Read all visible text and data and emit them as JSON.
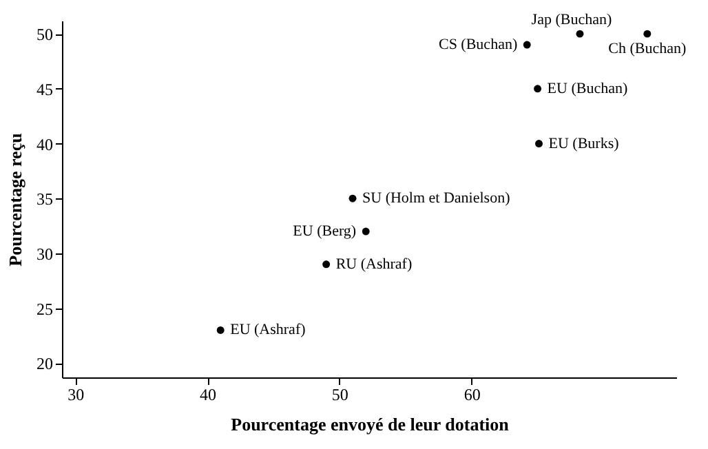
{
  "chart_data": {
    "type": "scatter",
    "xlabel": "Pourcentage envoyé de leur dotation",
    "ylabel": "Pourcentage reçu",
    "x": [
      41,
      49,
      52,
      51,
      65.1,
      65,
      64.2,
      68.2,
      73.3
    ],
    "series": [
      {
        "color": "#000000",
        "values": [
          23,
          29,
          32,
          35,
          40,
          45,
          49,
          50,
          50
        ]
      }
    ],
    "xlim": [
      29,
      75.5
    ],
    "xticks": [
      30,
      40,
      50,
      60
    ],
    "ylim": [
      18.7,
      51.2
    ],
    "yticks": [
      20,
      25,
      30,
      35,
      40,
      45,
      50
    ],
    "grid": false,
    "marker": "circle",
    "annotations": [
      {
        "text": "EU (Ashraf)",
        "x": 41,
        "y": 23
      },
      {
        "text": "RU (Ashraf)",
        "x": 49,
        "y": 29
      },
      {
        "text": "EU (Berg)",
        "x": 52,
        "y": 32
      },
      {
        "text": "SU (Holm et Danielson)",
        "x": 51,
        "y": 35
      },
      {
        "text": "EU (Burks)",
        "x": 65.1,
        "y": 40
      },
      {
        "text": "EU (Buchan)",
        "x": 65,
        "y": 45
      },
      {
        "text": "CS (Buchan)",
        "x": 64.2,
        "y": 49
      },
      {
        "text": "Jap (Buchan)",
        "x": 68.2,
        "y": 50
      },
      {
        "text": "Ch (Buchan)",
        "x": 73.3,
        "y": 50
      }
    ]
  }
}
